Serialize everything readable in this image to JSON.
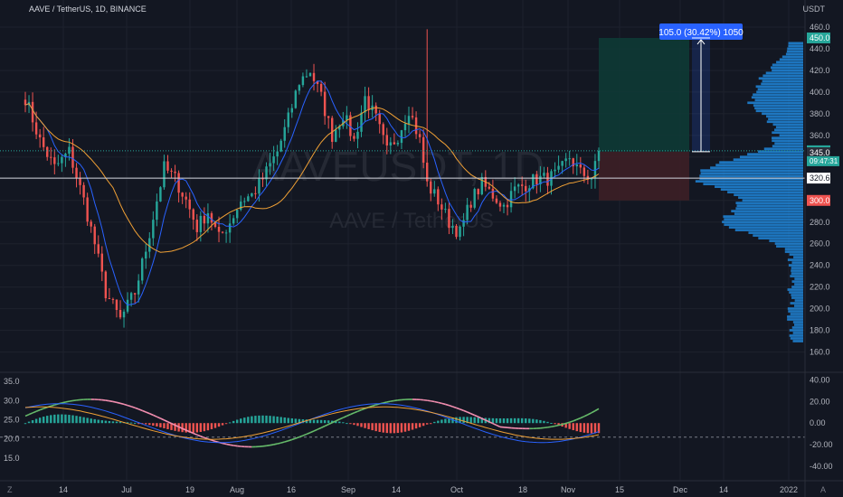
{
  "header": {
    "symbol": "AAVE / TetherUS, 1D, BINANCE",
    "currency": "USDT"
  },
  "watermark": {
    "ticker": "AAVEUSDT, 1D",
    "name": "AAVE / TetherUS"
  },
  "colors": {
    "bg": "#131722",
    "up": "#26a69a",
    "down": "#ef5350",
    "grid": "#1e222d",
    "text": "#b2b5be",
    "ma_fast": "#2962ff",
    "ma_slow": "#f0a035",
    "profile": "#2196f3",
    "target_fill": "#0e3a35",
    "stop_fill": "#3d1f26"
  },
  "measure": {
    "label": "105.0 (30.42%) 1050"
  },
  "chart_data": [
    {
      "type": "candlestick",
      "title": "AAVE / TetherUS, 1D, BINANCE",
      "ylabel": "USDT",
      "ylim": [
        148,
        470
      ],
      "y_ticks": [
        "460.0",
        "440.0",
        "420.0",
        "400.0",
        "380.0",
        "360.0",
        "340.0",
        "320.0",
        "300.0",
        "280.0",
        "260.0",
        "240.0",
        "220.0",
        "200.0",
        "180.0",
        "160.0"
      ],
      "x_ticks": [
        "14",
        "Jul",
        "19",
        "Aug",
        "16",
        "Sep",
        "14",
        "Oct",
        "18",
        "Nov",
        "15",
        "Dec",
        "14",
        "2022"
      ],
      "anchors": [
        [
          0,
          395
        ],
        [
          4,
          355
        ],
        [
          8,
          330
        ],
        [
          12,
          345
        ],
        [
          16,
          300
        ],
        [
          19,
          260
        ],
        [
          22,
          215
        ],
        [
          26,
          190
        ],
        [
          30,
          215
        ],
        [
          33,
          255
        ],
        [
          36,
          300
        ],
        [
          38,
          330
        ],
        [
          41,
          320
        ],
        [
          44,
          300
        ],
        [
          47,
          275
        ],
        [
          50,
          290
        ],
        [
          53,
          265
        ],
        [
          56,
          280
        ],
        [
          59,
          300
        ],
        [
          62,
          305
        ],
        [
          65,
          320
        ],
        [
          69,
          345
        ],
        [
          72,
          375
        ],
        [
          75,
          410
        ],
        [
          78,
          420
        ],
        [
          81,
          395
        ],
        [
          84,
          360
        ],
        [
          87,
          380
        ],
        [
          90,
          355
        ],
        [
          93,
          395
        ],
        [
          96,
          375
        ],
        [
          99,
          345
        ],
        [
          102,
          360
        ],
        [
          105,
          385
        ],
        [
          108,
          355
        ],
        [
          110,
          315
        ],
        [
          113,
          300
        ],
        [
          116,
          280
        ],
        [
          119,
          270
        ],
        [
          122,
          300
        ],
        [
          125,
          315
        ],
        [
          128,
          305
        ],
        [
          131,
          295
        ],
        [
          134,
          310
        ],
        [
          137,
          315
        ],
        [
          140,
          320
        ],
        [
          143,
          320
        ],
        [
          146,
          325
        ],
        [
          149,
          340
        ],
        [
          152,
          325
        ],
        [
          155,
          322
        ],
        [
          157,
          340
        ]
      ],
      "candle_count": 158,
      "last_price": "345.8",
      "countdown": "09:47:31",
      "price_tags": [
        {
          "value": "450.0",
          "price": 450,
          "color": "#26a69a"
        },
        {
          "value": "345.8",
          "price": 345.8,
          "color": "#26a69a"
        },
        {
          "value": "345.0",
          "price": 344,
          "color": "#2a2e39"
        },
        {
          "value": "320.6",
          "price": 320.6,
          "color": "#ffffff"
        },
        {
          "value": "300.0",
          "price": 300,
          "color": "#ef5350"
        }
      ],
      "horizontal_line": 320.6,
      "position": {
        "entry": 345,
        "target": 450,
        "stop": 300
      },
      "volume_profile_range": [
        170,
        445
      ]
    },
    {
      "type": "oscillator",
      "left_ticks": [
        "35.0",
        "30.0",
        "25.0",
        "20.0",
        "15.0"
      ],
      "right_ticks": [
        "40.00",
        "20.00",
        "0.00",
        "-20.00",
        "-40.00"
      ],
      "left_lim": [
        10,
        36
      ],
      "right_lim": [
        -50,
        42
      ],
      "zero_line": 0,
      "dashed_line": -13
    }
  ]
}
